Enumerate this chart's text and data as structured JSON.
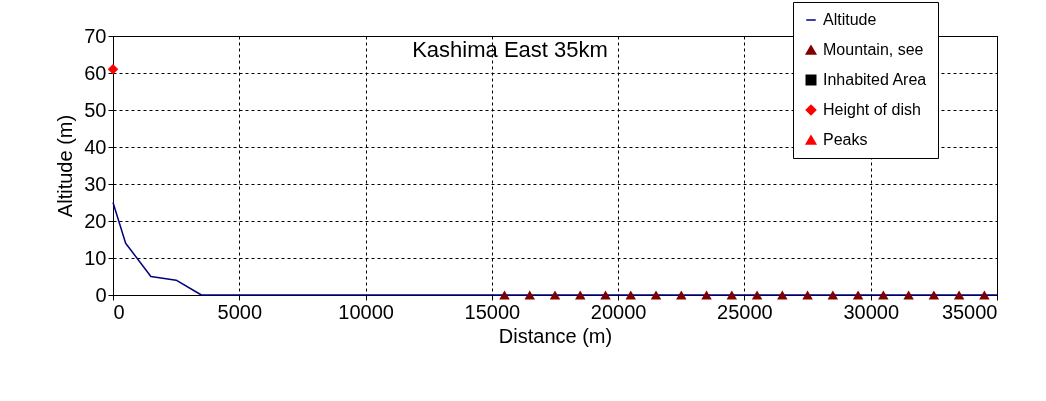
{
  "chart_data": {
    "type": "line",
    "title": "Kashima East 35km",
    "xlabel": "Distance (m)",
    "ylabel": "Altitude (m)",
    "xlim": [
      0,
      35000
    ],
    "xticks": [
      0,
      5000,
      10000,
      15000,
      20000,
      25000,
      30000,
      35000
    ],
    "ylim": [
      0,
      70
    ],
    "yticks": [
      0,
      10,
      20,
      30,
      40,
      50,
      60,
      70
    ],
    "grid": true,
    "legend": "top right",
    "series": [
      {
        "name": "Altitude",
        "color": "#000080",
        "marker": "none",
        "x": [
          0,
          500,
          1500,
          2500,
          3500,
          35000
        ],
        "values": [
          25,
          14,
          5,
          4,
          0,
          0
        ]
      },
      {
        "name": "Mountain, see",
        "type": "scatter",
        "color": "#800000",
        "marker": "triangle",
        "x": [
          15500,
          16500,
          17500,
          18500,
          19500,
          20500,
          21500,
          22500,
          23500,
          24500,
          25500,
          26500,
          27500,
          28500,
          29500,
          30500,
          31500,
          32500,
          33500,
          34500
        ],
        "values": [
          0,
          0,
          0,
          0,
          0,
          0,
          0,
          0,
          0,
          0,
          0,
          0,
          0,
          0,
          0,
          0,
          0,
          0,
          0,
          0
        ]
      },
      {
        "name": "Inhabited Area",
        "type": "scatter",
        "color": "#000000",
        "marker": "square"
      },
      {
        "name": "Height of dish",
        "type": "scatter",
        "color": "#ff0000",
        "marker": "diamond",
        "x": [
          0
        ],
        "values": [
          61
        ]
      },
      {
        "name": "Peaks",
        "type": "scatter",
        "color": "#ff0000",
        "marker": "triangle"
      }
    ]
  }
}
